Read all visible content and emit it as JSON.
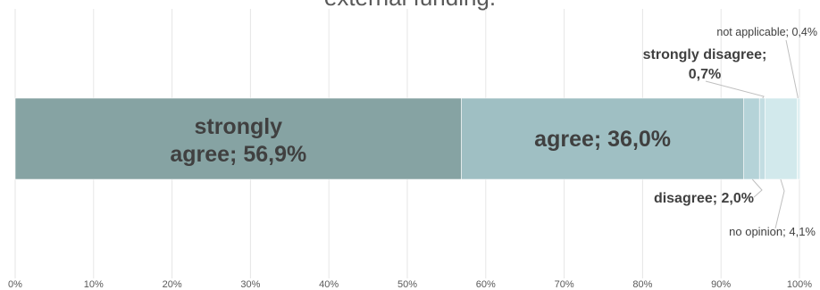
{
  "chart_data": {
    "type": "bar",
    "orientation": "horizontal",
    "stacked": true,
    "title": "external funding.",
    "xlabel": "",
    "ylabel": "",
    "xlim": [
      0,
      100
    ],
    "x_ticks": [
      "0%",
      "10%",
      "20%",
      "30%",
      "40%",
      "50%",
      "60%",
      "70%",
      "80%",
      "90%",
      "100%"
    ],
    "grid": true,
    "legend": "none",
    "series": [
      {
        "name": "strongly agree",
        "value": 56.9,
        "label_line1": "strongly",
        "label_line2": "agree; 56,9%",
        "color": "#86a3a3"
      },
      {
        "name": "agree",
        "value": 36.0,
        "label": "agree; 36,0%",
        "color": "#9fbfc3"
      },
      {
        "name": "disagree",
        "value": 2.0,
        "label": "disagree; 2,0%",
        "color": "#b5d3d8"
      },
      {
        "name": "strongly disagree",
        "value": 0.7,
        "label_line1": "strongly disagree;",
        "label_line2": "0,7%",
        "color": "#c3dde2"
      },
      {
        "name": "no opinion",
        "value": 4.1,
        "label": "no opinion; 4,1%",
        "color": "#d2e9ec"
      },
      {
        "name": "not applicable",
        "value": 0.4,
        "label": "not applicable; 0,4%",
        "color": "#e0f0f2"
      }
    ]
  }
}
